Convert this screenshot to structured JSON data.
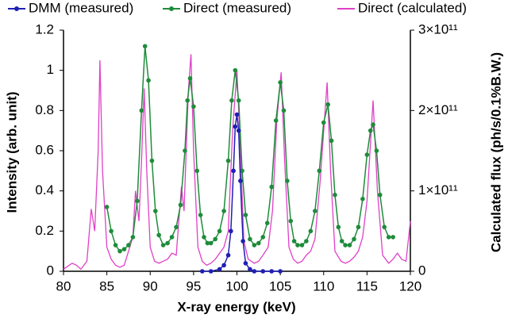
{
  "chart_data": {
    "type": "line",
    "xlabel": "X-ray energy (keV)",
    "ylabel": "Intensity (arb. unit)",
    "y2label": "Calculated flux (ph/s/0.1%B.W.)",
    "xlim": [
      80,
      120
    ],
    "xticks": [
      80,
      85,
      90,
      95,
      100,
      105,
      110,
      115,
      120
    ],
    "ylim": [
      0,
      1.2
    ],
    "yticks": [
      0,
      0.2,
      0.4,
      0.6,
      0.8,
      1,
      1.2
    ],
    "y2lim": [
      0,
      300000000000.0
    ],
    "y2ticks": [
      0,
      {
        "value": 100000000000.0,
        "label": "1×10¹¹"
      },
      {
        "value": 200000000000.0,
        "label": "2×10¹¹"
      },
      {
        "value": 300000000000.0,
        "label": "3×10¹¹"
      }
    ],
    "grid": false,
    "legend": "top",
    "series": [
      {
        "name": "DMM (measured)",
        "color": "#1f1fb4",
        "markers": true,
        "x": [
          96,
          97,
          98,
          98.5,
          99,
          99.3,
          99.6,
          99.8,
          100,
          100.2,
          100.4,
          100.7,
          101,
          101.5,
          102,
          103,
          104,
          105
        ],
        "values": [
          0,
          0,
          0.01,
          0.03,
          0.08,
          0.2,
          0.5,
          0.72,
          0.78,
          0.7,
          0.45,
          0.15,
          0.04,
          0.01,
          0,
          0,
          0,
          0
        ]
      },
      {
        "name": "Direct (measured)",
        "color": "#1e8c3a",
        "markers": true,
        "x": [
          85,
          85.5,
          86,
          86.5,
          87,
          87.5,
          88,
          88.5,
          89,
          89.4,
          89.8,
          90.2,
          90.6,
          91,
          91.5,
          92,
          92.5,
          93,
          93.5,
          94,
          94.3,
          94.6,
          95,
          95.4,
          95.8,
          96.2,
          96.6,
          97,
          97.5,
          98,
          98.5,
          99,
          99.4,
          99.8,
          100.2,
          100.6,
          101,
          101.5,
          102,
          102.5,
          103,
          103.5,
          104,
          104.5,
          105,
          105.4,
          105.8,
          106.2,
          106.6,
          107,
          107.5,
          108,
          108.5,
          109,
          109.5,
          110,
          110.5,
          110.9,
          111.3,
          111.7,
          112.1,
          112.5,
          113,
          113.5,
          114,
          114.5,
          115,
          115.4,
          115.7,
          116.1,
          116.5,
          117,
          117.5,
          118
        ],
        "values": [
          0.32,
          0.2,
          0.13,
          0.1,
          0.11,
          0.13,
          0.17,
          0.35,
          0.8,
          1.12,
          0.95,
          0.55,
          0.3,
          0.18,
          0.13,
          0.14,
          0.17,
          0.22,
          0.33,
          0.6,
          0.85,
          0.96,
          0.82,
          0.5,
          0.28,
          0.17,
          0.14,
          0.14,
          0.16,
          0.2,
          0.3,
          0.55,
          0.85,
          1.0,
          0.85,
          0.5,
          0.28,
          0.16,
          0.13,
          0.14,
          0.17,
          0.24,
          0.42,
          0.75,
          0.94,
          0.8,
          0.45,
          0.25,
          0.15,
          0.13,
          0.13,
          0.15,
          0.2,
          0.3,
          0.5,
          0.74,
          0.83,
          0.65,
          0.38,
          0.22,
          0.15,
          0.13,
          0.13,
          0.16,
          0.22,
          0.36,
          0.58,
          0.7,
          0.73,
          0.6,
          0.38,
          0.22,
          0.17,
          0.17
        ]
      },
      {
        "name": "Direct (calculated)",
        "color": "#e040c8",
        "markers": false,
        "axis": "y2",
        "x": [
          80,
          81,
          81.5,
          82,
          82.7,
          83.2,
          83.6,
          84,
          84.2,
          84.5,
          85,
          85.5,
          86,
          86.5,
          87,
          87.5,
          88,
          88.3,
          88.7,
          89,
          89.3,
          89.6,
          90,
          90.5,
          91,
          91.5,
          92,
          92.5,
          93,
          93.6,
          93.9,
          94.4,
          94.7,
          95,
          95.5,
          96,
          96.5,
          97,
          97.5,
          98,
          98.5,
          99,
          99.5,
          100,
          100.4,
          100.8,
          101.3,
          102,
          102.5,
          103,
          103.6,
          104.1,
          104.6,
          105.1,
          105.5,
          106,
          106.5,
          107,
          107.5,
          108,
          108.5,
          109,
          109.6,
          110.4,
          110.8,
          111.3,
          112,
          112.5,
          113,
          113.5,
          114,
          114.5,
          115,
          115.7,
          116.2,
          116.8,
          117.5,
          118,
          118.5,
          119,
          119.5,
          120
        ],
        "values": [
          2500000000.0,
          10000000000.0,
          7500000000.0,
          2500000000.0,
          12500000000.0,
          77500000000.0,
          50000000000.0,
          150000000000.0,
          262500000000.0,
          125000000000.0,
          30000000000.0,
          15000000000.0,
          7500000000.0,
          5000000000.0,
          7500000000.0,
          25000000000.0,
          42500000000.0,
          100000000000.0,
          62500000000.0,
          137500000000.0,
          227500000000.0,
          125000000000.0,
          30000000000.0,
          12500000000.0,
          10000000000.0,
          12500000000.0,
          15000000000.0,
          22500000000.0,
          20000000000.0,
          105000000000.0,
          75000000000.0,
          225000000000.0,
          270000000000.0,
          150000000000.0,
          30000000000.0,
          12500000000.0,
          7500000000.0,
          10000000000.0,
          15000000000.0,
          22500000000.0,
          30000000000.0,
          50000000000.0,
          175000000000.0,
          250000000000.0,
          150000000000.0,
          37500000000.0,
          15000000000.0,
          10000000000.0,
          12500000000.0,
          20000000000.0,
          30000000000.0,
          75000000000.0,
          187500000000.0,
          247500000000.0,
          137500000000.0,
          30000000000.0,
          15000000000.0,
          10000000000.0,
          12500000000.0,
          20000000000.0,
          25000000000.0,
          40000000000.0,
          112500000000.0,
          235000000000.0,
          125000000000.0,
          25000000000.0,
          12500000000.0,
          10000000000.0,
          12500000000.0,
          17500000000.0,
          25000000000.0,
          42500000000.0,
          87500000000.0,
          212500000000.0,
          100000000000.0,
          20000000000.0,
          10000000000.0,
          15000000000.0,
          22500000000.0,
          15000000000.0,
          12500000000.0,
          62500000000.0
        ]
      }
    ]
  }
}
